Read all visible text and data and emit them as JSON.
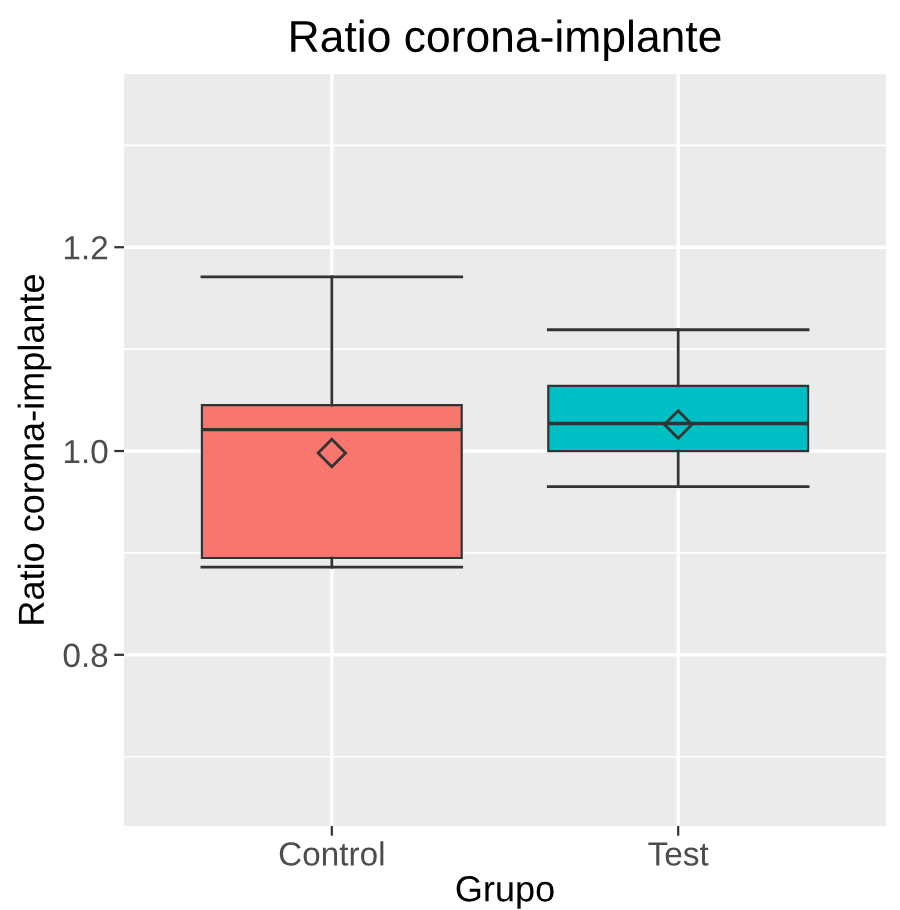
{
  "chart_data": {
    "type": "box",
    "title": "Ratio corona-implante",
    "xlabel": "Grupo",
    "ylabel": "Ratio corona-implante",
    "categories": [
      "Control",
      "Test"
    ],
    "colors": [
      "#f8766d",
      "#00bfc4"
    ],
    "boxes": [
      {
        "low": 0.886,
        "q1": 0.895,
        "median": 1.021,
        "q3": 1.045,
        "high": 1.171,
        "mean": 0.998
      },
      {
        "low": 0.965,
        "q1": 1.0,
        "median": 1.027,
        "q3": 1.064,
        "high": 1.119,
        "mean": 1.026
      }
    ],
    "ylim": [
      0.632,
      1.37
    ],
    "yticks": [
      {
        "value": 0.7,
        "label": null
      },
      0.8,
      {
        "value": 0.9,
        "label": null
      },
      {
        "value": 1.0,
        "label": "1.0"
      },
      {
        "value": 1.1,
        "label": null
      },
      1.2,
      {
        "value": 1.3,
        "label": null
      }
    ],
    "grid": true,
    "marker": "diamond"
  }
}
